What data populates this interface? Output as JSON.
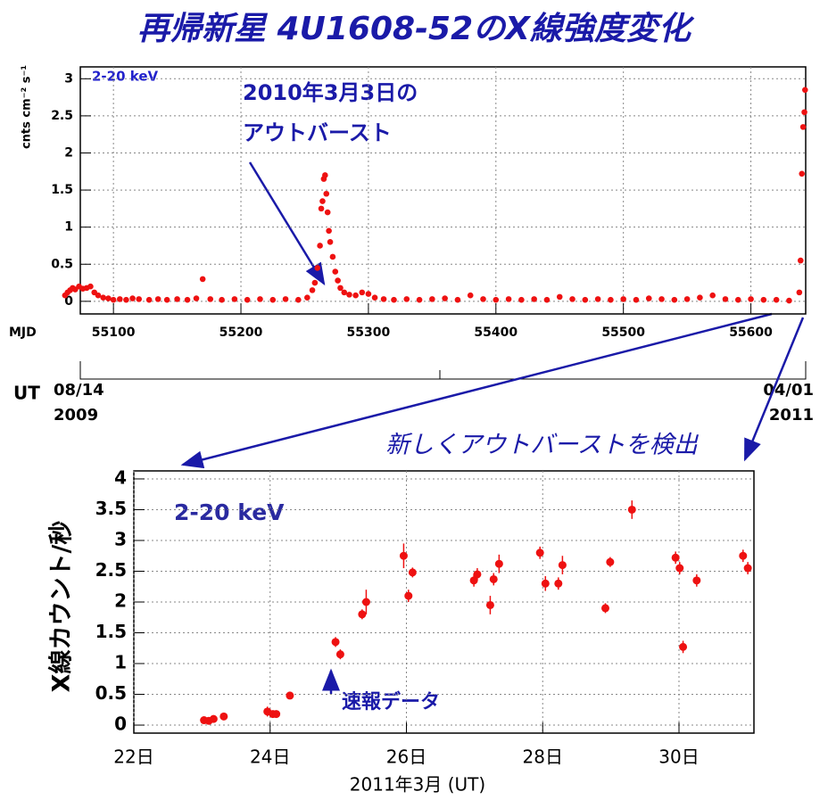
{
  "chart_data": [
    {
      "type": "scatter",
      "title": "再帰新星 4U1608-52のX線強度変化",
      "ylabel": "cnts cm⁻² s⁻¹",
      "xlabel": "MJD",
      "annotations": [
        "2-20 keV",
        "2010年3月3日の",
        "アウトバースト"
      ],
      "ut_axis": {
        "label": "UT",
        "start": [
          "08/14",
          "2009"
        ],
        "end": [
          "04/01",
          "2011"
        ]
      },
      "xlim": [
        55074,
        55643
      ],
      "ylim": [
        -0.17,
        3.16
      ],
      "xticks": [
        55100,
        55200,
        55300,
        55400,
        55500,
        55600
      ],
      "yticks": [
        0,
        0.5,
        1,
        1.5,
        2,
        2.5,
        3
      ],
      "grid": true,
      "color": "#ee1111",
      "x": [
        55062,
        55064,
        55066,
        55068,
        55070,
        55073,
        55076,
        55079,
        55082,
        55085,
        55088,
        55092,
        55096,
        55100,
        55105,
        55110,
        55115,
        55120,
        55128,
        55135,
        55142,
        55150,
        55158,
        55165,
        55170,
        55176,
        55185,
        55195,
        55205,
        55215,
        55225,
        55235,
        55245,
        55252,
        55256,
        55258,
        55260,
        55262,
        55263,
        55264,
        55265,
        55266,
        55267,
        55268,
        55269,
        55270,
        55272,
        55274,
        55276,
        55278,
        55281,
        55285,
        55290,
        55295,
        55300,
        55305,
        55312,
        55320,
        55330,
        55340,
        55350,
        55360,
        55370,
        55380,
        55390,
        55400,
        55410,
        55420,
        55430,
        55440,
        55450,
        55460,
        55470,
        55480,
        55490,
        55500,
        55510,
        55520,
        55530,
        55540,
        55550,
        55560,
        55570,
        55580,
        55590,
        55600,
        55610,
        55620,
        55630,
        55638,
        55639,
        55640,
        55641,
        55642,
        55642.5
      ],
      "values": [
        0.08,
        0.12,
        0.15,
        0.18,
        0.16,
        0.2,
        0.17,
        0.18,
        0.2,
        0.12,
        0.08,
        0.05,
        0.04,
        0.02,
        0.03,
        0.02,
        0.04,
        0.03,
        0.02,
        0.03,
        0.02,
        0.03,
        0.02,
        0.04,
        0.3,
        0.03,
        0.02,
        0.03,
        0.02,
        0.03,
        0.02,
        0.03,
        0.02,
        0.05,
        0.15,
        0.25,
        0.45,
        0.75,
        1.25,
        1.35,
        1.65,
        1.7,
        1.45,
        1.2,
        0.95,
        0.8,
        0.6,
        0.4,
        0.28,
        0.18,
        0.12,
        0.09,
        0.08,
        0.12,
        0.1,
        0.05,
        0.03,
        0.02,
        0.03,
        0.02,
        0.03,
        0.04,
        0.02,
        0.08,
        0.03,
        0.02,
        0.03,
        0.02,
        0.03,
        0.02,
        0.06,
        0.03,
        0.02,
        0.03,
        0.02,
        0.03,
        0.02,
        0.04,
        0.03,
        0.02,
        0.03,
        0.05,
        0.08,
        0.03,
        0.02,
        0.03,
        0.02,
        0.02,
        0.01,
        0.12,
        0.55,
        1.72,
        2.35,
        2.55,
        2.85
      ]
    },
    {
      "type": "scatter",
      "title": "新しくアウトバーストを検出",
      "ylabel": "X線カウント/秒",
      "xlabel": "2011年3月 (UT)",
      "annotations": [
        "2-20 keV",
        "速報データ"
      ],
      "xlim": [
        22,
        31.1
      ],
      "ylim": [
        -0.13,
        4.13
      ],
      "xticks": [
        {
          "value": 22,
          "label": "22日"
        },
        {
          "value": 24,
          "label": "24日"
        },
        {
          "value": 26,
          "label": "26日"
        },
        {
          "value": 28,
          "label": "28日"
        },
        {
          "value": 30,
          "label": "30日"
        }
      ],
      "yticks": [
        0,
        0.5,
        1,
        1.5,
        2,
        2.5,
        3,
        3.5,
        4
      ],
      "grid": true,
      "color": "#ee1111",
      "x": [
        23.03,
        23.1,
        23.17,
        23.32,
        23.96,
        24.04,
        24.09,
        24.29,
        24.96,
        25.03,
        25.35,
        25.41,
        25.96,
        26.03,
        26.09,
        26.99,
        27.04,
        27.23,
        27.28,
        27.36,
        27.96,
        28.04,
        28.23,
        28.29,
        28.92,
        28.99,
        29.31,
        29.95,
        30.01,
        30.06,
        30.26,
        30.94,
        31.01
      ],
      "values": [
        0.08,
        0.07,
        0.1,
        0.14,
        0.22,
        0.18,
        0.18,
        0.48,
        1.35,
        1.15,
        1.8,
        2.0,
        2.75,
        2.1,
        2.48,
        2.35,
        2.45,
        1.95,
        2.37,
        2.62,
        2.8,
        2.3,
        2.3,
        2.6,
        1.9,
        2.65,
        3.5,
        2.72,
        2.55,
        1.27,
        2.35,
        2.75,
        2.55
      ],
      "errors": [
        0.05,
        0.04,
        0.05,
        0.04,
        0.08,
        0.06,
        0.06,
        0.05,
        0.08,
        0.08,
        0.08,
        0.2,
        0.2,
        0.1,
        0.08,
        0.1,
        0.1,
        0.15,
        0.1,
        0.15,
        0.1,
        0.12,
        0.1,
        0.15,
        0.08,
        0.08,
        0.15,
        0.1,
        0.1,
        0.1,
        0.1,
        0.1,
        0.1
      ]
    }
  ]
}
